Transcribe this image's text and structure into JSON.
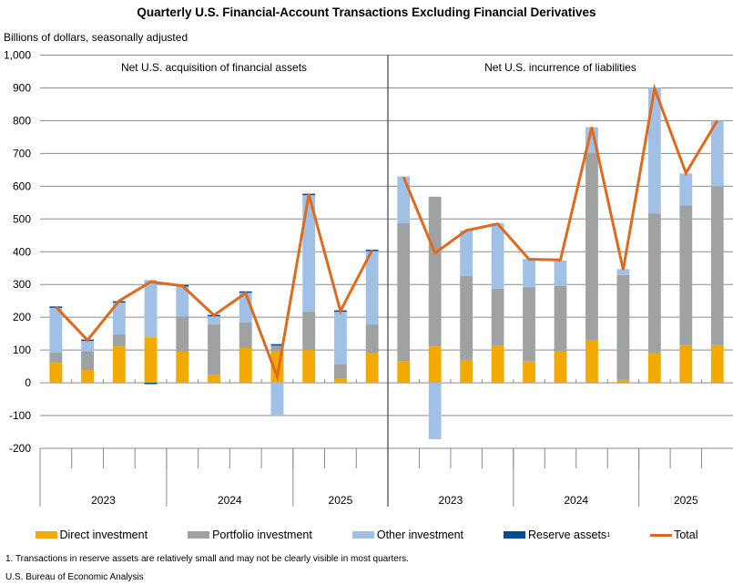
{
  "chart_data": {
    "type": "bar",
    "title": "Quarterly U.S. Financial-Account Transactions Excluding Financial Derivatives",
    "ylabel": "Billions of dollars, seasonally adjusted",
    "xlabel": "",
    "ylim": [
      -200,
      1000
    ],
    "yticks": [
      1000,
      900,
      800,
      700,
      600,
      500,
      400,
      300,
      200,
      100,
      0,
      -100,
      -200
    ],
    "ytick_labels": [
      "1,000",
      "900",
      "800",
      "700",
      "600",
      "500",
      "400",
      "300",
      "200",
      "100",
      "0",
      "-100",
      "-200"
    ],
    "grid": true,
    "stacked": true,
    "legend_position": "bottom",
    "year_groups": [
      {
        "label": "2023",
        "quarters": 4
      },
      {
        "label": "2024",
        "quarters": 4
      },
      {
        "label": "2025",
        "quarters": 3
      }
    ],
    "categories": [
      "2023Q1",
      "2023Q2",
      "2023Q3",
      "2023Q4",
      "2024Q1",
      "2024Q2",
      "2024Q3",
      "2024Q4",
      "2025Q1",
      "2025Q2",
      "2025Q3"
    ],
    "legend": [
      {
        "name": "Direct investment",
        "color": "#F2A900",
        "kind": "bar"
      },
      {
        "name": "Portfolio investment",
        "color": "#9EA2A2",
        "kind": "bar"
      },
      {
        "name": "Other investment",
        "color": "#A0C1E5",
        "kind": "bar"
      },
      {
        "name": "Reserve assets",
        "superscript": "1",
        "color": "#004C97",
        "kind": "bar"
      },
      {
        "name": "Total",
        "color": "#E06A1B",
        "kind": "line"
      }
    ],
    "panels": [
      {
        "label": "Net U.S. acquisition of financial assets",
        "series": [
          {
            "name": "Direct investment",
            "values": [
              61,
              39,
              111,
              139,
              95,
              25,
              106,
              95,
              100,
              12,
              92
            ]
          },
          {
            "name": "Portfolio investment",
            "values": [
              31,
              58,
              37,
              0,
              108,
              153,
              78,
              22,
              117,
              44,
              86
            ]
          },
          {
            "name": "Other investment",
            "values": [
              139,
              33,
              99,
              175,
              93,
              27,
              93,
              -100,
              358,
              163,
              227
            ]
          },
          {
            "name": "Reserve assets",
            "values": [
              2,
              2,
              2,
              -4,
              2,
              2,
              2,
              1,
              2,
              2,
              1
            ]
          },
          {
            "name": "Total",
            "values": [
              232,
              130,
              250,
              308,
              296,
              206,
              274,
              18,
              575,
              219,
              405
            ]
          }
        ]
      },
      {
        "label": "Net U.S. incurrence of liabilities",
        "series": [
          {
            "name": "Direct investment",
            "values": [
              66,
              111,
              70,
              114,
              65,
              95,
              131,
              9,
              90,
              115,
              115
            ]
          },
          {
            "name": "Portfolio investment",
            "values": [
              421,
              457,
              256,
              173,
              227,
              200,
              571,
              320,
              427,
              427,
              485
            ]
          },
          {
            "name": "Other investment",
            "values": [
              143,
              -172,
              139,
              200,
              86,
              78,
              78,
              18,
              383,
              97,
              200
            ]
          },
          {
            "name": "Reserve assets",
            "values": [
              0,
              0,
              0,
              0,
              0,
              0,
              0,
              0,
              0,
              0,
              0
            ]
          },
          {
            "name": "Total",
            "values": [
              628,
              396,
              465,
              485,
              377,
              375,
              780,
              345,
              898,
              640,
              800
            ]
          }
        ]
      }
    ]
  },
  "header": {
    "title": "Quarterly U.S. Financial-Account Transactions Excluding Financial Derivatives",
    "units": "Billions of dollars, seasonally adjusted"
  },
  "legend_labels": {
    "direct": "Direct investment",
    "portfolio": "Portfolio investment",
    "other": "Other investment",
    "reserve": "Reserve assets",
    "reserve_sup": "1",
    "total": "Total"
  },
  "footer": {
    "footnote": "1. Transactions in reserve assets are relatively small and may not be clearly visible in most quarters.",
    "source": "U.S. Bureau of Economic Analysis"
  }
}
